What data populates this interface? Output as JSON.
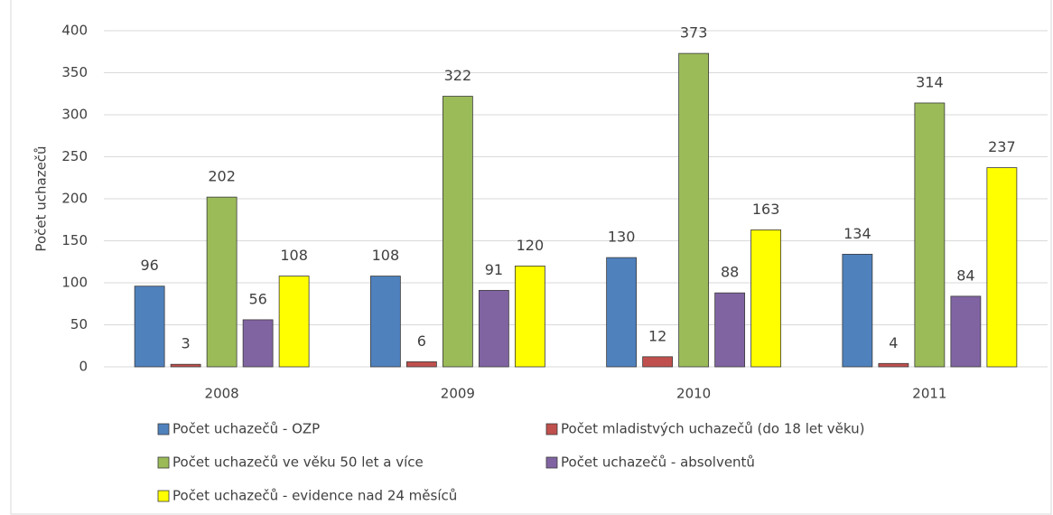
{
  "chart_data": {
    "type": "bar",
    "y_label": "Počet uchazečů",
    "categories": [
      "2008",
      "2009",
      "2010",
      "2011"
    ],
    "series": [
      {
        "name": "Počet uchazečů - OZP",
        "color": "#4f81bd",
        "values": [
          96,
          108,
          130,
          134
        ]
      },
      {
        "name": "Počet mladistvých uchazečů (do 18 let věku)",
        "color": "#c0504d",
        "values": [
          3,
          6,
          12,
          4
        ]
      },
      {
        "name": "Počet uchazečů ve věku 50 let a více",
        "color": "#9bbb59",
        "values": [
          202,
          322,
          373,
          314
        ]
      },
      {
        "name": "Počet uchazečů - absolventů",
        "color": "#8064a2",
        "values": [
          56,
          91,
          88,
          84
        ]
      },
      {
        "name": "Počet uchazečů - evidence nad 24 měsíců",
        "color": "#ffff00",
        "values": [
          108,
          120,
          163,
          237
        ]
      }
    ],
    "ylim": [
      0,
      400
    ],
    "yticks": [
      0,
      50,
      100,
      150,
      200,
      250,
      300,
      350,
      400
    ],
    "grid": true,
    "legend": "bottom"
  }
}
